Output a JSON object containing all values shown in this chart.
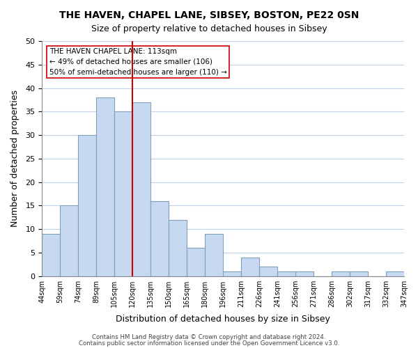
{
  "title": "THE HAVEN, CHAPEL LANE, SIBSEY, BOSTON, PE22 0SN",
  "subtitle": "Size of property relative to detached houses in Sibsey",
  "xlabel": "Distribution of detached houses by size in Sibsey",
  "ylabel": "Number of detached properties",
  "bin_edges": [
    "44sqm",
    "59sqm",
    "74sqm",
    "89sqm",
    "105sqm",
    "120sqm",
    "135sqm",
    "150sqm",
    "165sqm",
    "180sqm",
    "196sqm",
    "211sqm",
    "226sqm",
    "241sqm",
    "256sqm",
    "271sqm",
    "286sqm",
    "302sqm",
    "317sqm",
    "332sqm",
    "347sqm"
  ],
  "bar_heights": [
    9,
    15,
    30,
    38,
    35,
    37,
    16,
    12,
    6,
    9,
    1,
    4,
    2,
    1,
    1,
    0,
    1,
    1,
    0,
    1
  ],
  "bar_color": "#c6d9f0",
  "bar_edge_color": "#7f9fbf",
  "vline_position": 4.5,
  "vline_color": "#cc0000",
  "ylim": [
    0,
    50
  ],
  "yticks": [
    0,
    5,
    10,
    15,
    20,
    25,
    30,
    35,
    40,
    45,
    50
  ],
  "annotation_title": "THE HAVEN CHAPEL LANE: 113sqm",
  "annotation_line1": "← 49% of detached houses are smaller (106)",
  "annotation_line2": "50% of semi-detached houses are larger (110) →",
  "footnote1": "Contains HM Land Registry data © Crown copyright and database right 2024.",
  "footnote2": "Contains public sector information licensed under the Open Government Licence v3.0.",
  "background_color": "#ffffff",
  "grid_color": "#c0d0e8"
}
